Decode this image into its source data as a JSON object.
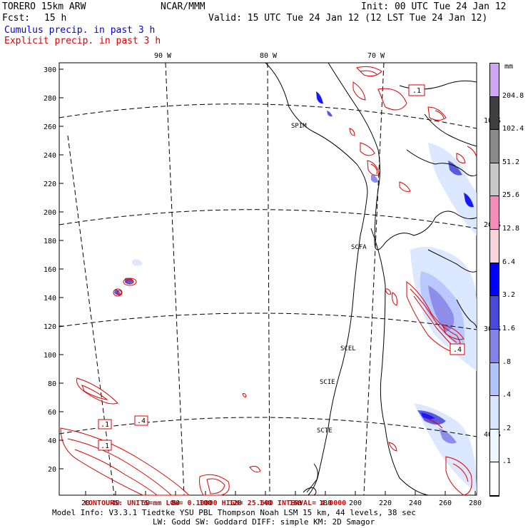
{
  "header": {
    "model": "TORERO  15km ARW",
    "org": "NCAR/MMM",
    "init": "Init: 00 UTC Tue 24 Jan 12",
    "fcst_label": "Fcst:",
    "fcst_value": "15 h",
    "valid": "Valid: 15 UTC Tue 24 Jan 12 (12 LST Tue 24 Jan 12)",
    "cumulus": "Cumulus precip. in past 3 h",
    "explicit": "Explicit precip. in past 3 h"
  },
  "map": {
    "lon_labels": [
      "90 W",
      "80 W",
      "70 W"
    ],
    "lat_labels": [
      "10 S",
      "20 S",
      "30 S",
      "40 S"
    ],
    "y_ticks": [
      "300",
      "280",
      "260",
      "240",
      "220",
      "200",
      "180",
      "160",
      "140",
      "120",
      "100",
      "80",
      "60",
      "40",
      "20"
    ],
    "x_ticks": [
      "20",
      "40",
      "60",
      "80",
      "100",
      "120",
      "140",
      "160",
      "180",
      "200",
      "220",
      "240",
      "260",
      "280"
    ],
    "stations": [
      "SPIM",
      "SCFA",
      "SCEL",
      "SCIE",
      "SCTE"
    ],
    "contour_boxes": [
      ".1",
      ".4",
      ".1",
      ".1",
      ".4"
    ]
  },
  "colorbar": {
    "units": "mm",
    "levels": [
      "204.8",
      "102.4",
      "51.2",
      "25.6",
      "12.8",
      "6.4",
      "3.2",
      "1.6",
      ".8",
      ".4",
      ".2",
      ".1"
    ],
    "colors": [
      "#cda8f0",
      "#3f3f3f",
      "#8a8a8a",
      "#c8c8c8",
      "#f58cb8",
      "#f7d5d8",
      "#0000ff",
      "#4a4ad8",
      "#8282e8",
      "#b2c4ff",
      "#d7e5ff",
      "#eef6ff",
      "#ffffff"
    ]
  },
  "footer": {
    "contours": "CONTOURS: UNITS=mm  LOW= 0.10000  HIGH= 25.600  INTERVAL= 4.0000",
    "info1": "Model Info: V3.3.1   Tiedtke YSU PBL  Thompson   Noah LSM  15 km,   44 levels,   38 sec",
    "info2": "LW: Godd SW: Goddard DIFF: simple KM: 2D Smagor"
  }
}
